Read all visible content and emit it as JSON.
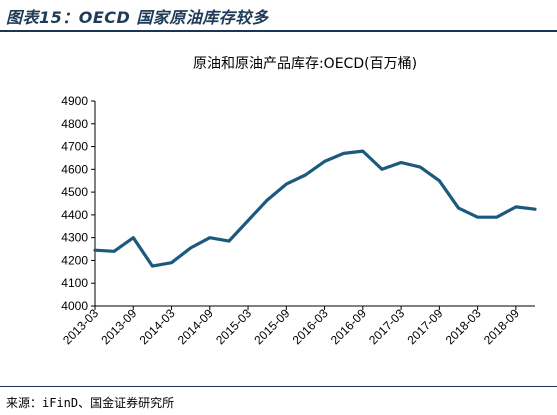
{
  "figure_title": "图表15：OECD 国家原油库存较多",
  "source": "来源：iFinD、国金证券研究所",
  "chart_data": {
    "type": "line",
    "title": "原油和原油产品库存:OECD(百万桶)",
    "xlabel": "",
    "ylabel": "",
    "ylim": [
      4000,
      4900
    ],
    "yticks": [
      4000,
      4100,
      4200,
      4300,
      4400,
      4500,
      4600,
      4700,
      4800,
      4900
    ],
    "xtick_labels": [
      "2013-03",
      "2013-09",
      "2014-03",
      "2014-09",
      "2015-03",
      "2015-09",
      "2016-03",
      "2016-09",
      "2017-03",
      "2017-09",
      "2018-03",
      "2018-09"
    ],
    "grid": false,
    "legend": "none",
    "series": [
      {
        "color": "#1c5a7d",
        "x": [
          "2013-03",
          "2013-06",
          "2013-09",
          "2013-12",
          "2014-03",
          "2014-06",
          "2014-09",
          "2014-12",
          "2015-03",
          "2015-06",
          "2015-09",
          "2015-12",
          "2016-03",
          "2016-06",
          "2016-09",
          "2016-12",
          "2017-03",
          "2017-06",
          "2017-09",
          "2017-12",
          "2018-03",
          "2018-06",
          "2018-09",
          "2018-12"
        ],
        "values": [
          4245,
          4240,
          4300,
          4175,
          4190,
          4255,
          4300,
          4285,
          4375,
          4465,
          4535,
          4575,
          4635,
          4670,
          4680,
          4600,
          4630,
          4610,
          4550,
          4430,
          4390,
          4390,
          4435,
          4425
        ]
      }
    ]
  }
}
